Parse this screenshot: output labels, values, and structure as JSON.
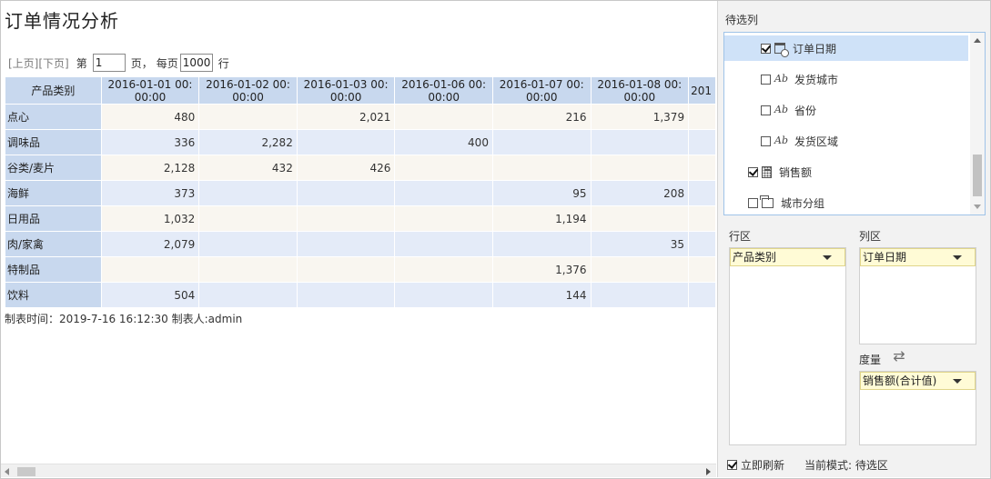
{
  "report": {
    "title": "订单情况分析",
    "pager": {
      "prev": "[上页]",
      "next": "[下页]",
      "page_prefix": "第",
      "page_value": "1",
      "page_suffix": "页，",
      "per_page_prefix": "每页",
      "per_page_value": "1000",
      "per_page_suffix": "行"
    },
    "table": {
      "corner": "产品类别",
      "columns": [
        "2016-01-01 00:\n00:00",
        "2016-01-02 00:\n00:00",
        "2016-01-03 00:\n00:00",
        "2016-01-06 00:\n00:00",
        "2016-01-07 00:\n00:00",
        "2016-01-08 00:\n00:00",
        "201"
      ],
      "rows": [
        {
          "label": "点心",
          "cells": [
            "480",
            "",
            "2,021",
            "",
            "216",
            "1,379",
            ""
          ]
        },
        {
          "label": "调味品",
          "cells": [
            "336",
            "2,282",
            "",
            "400",
            "",
            "",
            ""
          ]
        },
        {
          "label": "谷类/麦片",
          "cells": [
            "2,128",
            "432",
            "426",
            "",
            "",
            "",
            ""
          ]
        },
        {
          "label": "海鲜",
          "cells": [
            "373",
            "",
            "",
            "",
            "95",
            "208",
            ""
          ]
        },
        {
          "label": "日用品",
          "cells": [
            "1,032",
            "",
            "",
            "",
            "1,194",
            "",
            ""
          ]
        },
        {
          "label": "肉/家禽",
          "cells": [
            "2,079",
            "",
            "",
            "",
            "",
            "35",
            ""
          ]
        },
        {
          "label": "特制品",
          "cells": [
            "",
            "",
            "",
            "",
            "1,376",
            "",
            ""
          ]
        },
        {
          "label": "饮料",
          "cells": [
            "504",
            "",
            "",
            "",
            "144",
            "",
            ""
          ]
        }
      ]
    },
    "footer": "制表时间：2019-7-16 16:12:30 制表人:admin"
  },
  "panel": {
    "candidate_label": "待选列",
    "fields": [
      {
        "label": "订单日期",
        "checked": true,
        "icon": "calendar-icon",
        "selected": true
      },
      {
        "label": "发货城市",
        "checked": false,
        "icon": "text-field-icon",
        "selected": false
      },
      {
        "label": "省份",
        "checked": false,
        "icon": "text-field-icon",
        "selected": false
      },
      {
        "label": "发货区域",
        "checked": false,
        "icon": "text-field-icon",
        "selected": false
      },
      {
        "label": "销售额",
        "checked": true,
        "icon": "calculator-icon",
        "selected": false
      },
      {
        "label": "城市分组",
        "checked": false,
        "icon": "group-icon",
        "selected": false
      }
    ],
    "row_zone_label": "行区",
    "row_zone_value": "产品类别",
    "col_zone_label": "列区",
    "col_zone_value": "订单日期",
    "measure_label": "度量",
    "measure_value": "销售额(合计值)",
    "auto_refresh_label": "立即刷新",
    "auto_refresh_checked": true,
    "mode_text": "当前模式: 待选区"
  }
}
